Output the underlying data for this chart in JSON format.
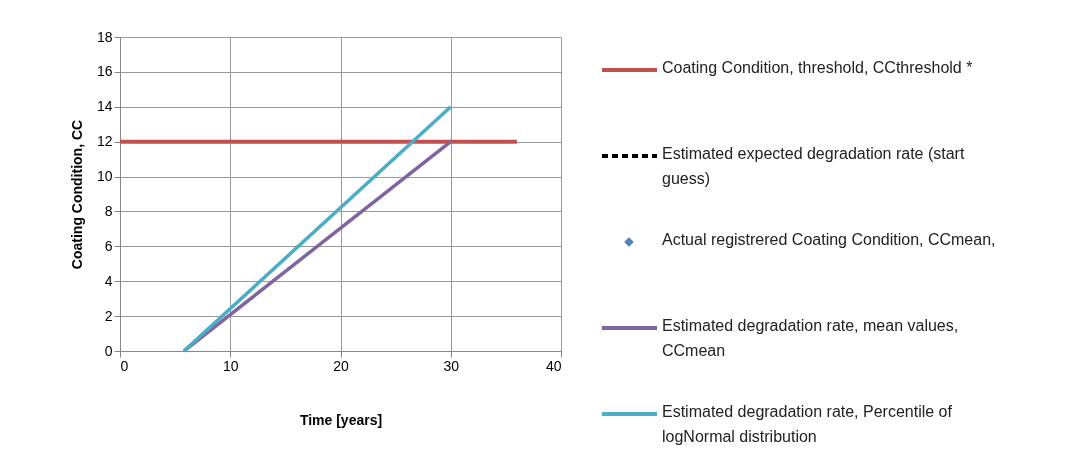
{
  "chart_data": {
    "type": "line",
    "xlabel": "Time [years]",
    "ylabel": "Coating Condition, CC",
    "xlim": [
      0,
      40
    ],
    "xticks": [
      0,
      10,
      20,
      30,
      40
    ],
    "ylim": [
      0,
      18
    ],
    "yticks": [
      0,
      2,
      4,
      6,
      8,
      10,
      12,
      14,
      16,
      18
    ],
    "grid": true,
    "legend": "right",
    "series": [
      {
        "name": "Coating Condition, threshold, CCthreshold *",
        "color": "#c0504d",
        "x": [
          0,
          36
        ],
        "values": [
          12,
          12
        ]
      },
      {
        "name": "Estimated expected degradation rate (start guess)",
        "color": "#000000",
        "line_style": "dashed"
      },
      {
        "name": "Actual registrered Coating Condition, CCmean,",
        "type": "scatter",
        "marker": "diamond",
        "color": "#4f81bd"
      },
      {
        "name": "Estimated degradation rate, mean values, CCmean",
        "color": "#8064a2",
        "x": [
          5.8,
          30
        ],
        "values": [
          0,
          12
        ]
      },
      {
        "name": "Estimated degradation rate, Percentile of logNormal distribution",
        "color": "#4bacc6",
        "x": [
          5.8,
          30
        ],
        "values": [
          0,
          14
        ]
      }
    ]
  }
}
